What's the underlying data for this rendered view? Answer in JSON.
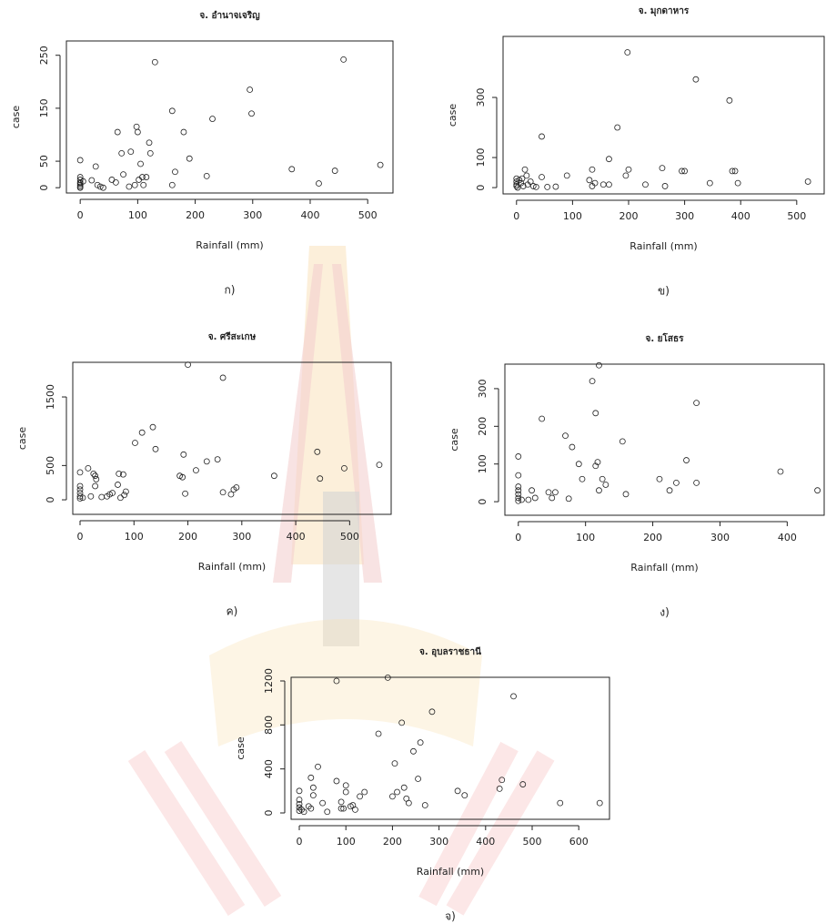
{
  "chart_data": [
    {
      "type": "scatter",
      "title": "จ. อำนาจเจริญ",
      "xlabel": "Rainfall (mm)",
      "ylabel": "case",
      "caption": "ก)",
      "x": [
        0,
        0,
        0,
        0,
        0,
        0,
        0,
        0,
        5,
        20,
        27,
        30,
        35,
        40,
        55,
        62,
        65,
        72,
        75,
        85,
        88,
        95,
        98,
        100,
        102,
        105,
        108,
        110,
        115,
        120,
        122,
        130,
        160,
        160,
        165,
        180,
        190,
        220,
        230,
        295,
        298,
        368,
        415,
        443,
        458,
        522
      ],
      "y": [
        52,
        20,
        15,
        10,
        5,
        2,
        0,
        8,
        12,
        14,
        40,
        5,
        2,
        0,
        15,
        10,
        105,
        65,
        25,
        2,
        68,
        5,
        115,
        105,
        15,
        45,
        20,
        5,
        20,
        85,
        65,
        237,
        145,
        5,
        30,
        105,
        55,
        22,
        130,
        185,
        140,
        35,
        8,
        32,
        242,
        43
      ],
      "xlim": [
        -24,
        544
      ],
      "ylim": [
        -10,
        277
      ],
      "xticks": [
        0,
        100,
        200,
        300,
        400,
        500
      ],
      "yticks": [
        0,
        50,
        150,
        250
      ]
    },
    {
      "type": "scatter",
      "title": "จ. มุกดาหาร",
      "xlabel": "Rainfall (mm)",
      "ylabel": "case",
      "caption": "ข)",
      "x": [
        0,
        0,
        0,
        0,
        2,
        5,
        8,
        10,
        12,
        15,
        18,
        20,
        25,
        30,
        35,
        45,
        45,
        55,
        70,
        90,
        130,
        135,
        135,
        140,
        155,
        165,
        165,
        180,
        195,
        198,
        200,
        230,
        260,
        265,
        295,
        300,
        320,
        345,
        380,
        385,
        390,
        395,
        520
      ],
      "y": [
        30,
        20,
        10,
        5,
        0,
        25,
        15,
        30,
        5,
        60,
        40,
        10,
        20,
        5,
        2,
        170,
        35,
        2,
        3,
        40,
        25,
        60,
        5,
        15,
        10,
        95,
        10,
        200,
        40,
        450,
        60,
        10,
        65,
        5,
        55,
        55,
        360,
        15,
        290,
        55,
        55,
        15,
        20
      ],
      "xlim": [
        -24,
        549
      ],
      "ylim": [
        -21,
        503
      ],
      "xticks": [
        0,
        100,
        200,
        300,
        400,
        500
      ],
      "yticks": [
        0,
        100,
        300
      ]
    },
    {
      "type": "scatter",
      "title": "จ. ศรีสะเกษ",
      "xlabel": "Rainfall (mm)",
      "ylabel": "case",
      "caption": "ค)",
      "x": [
        0,
        0,
        0,
        0,
        0,
        0,
        5,
        15,
        20,
        25,
        28,
        28,
        30,
        40,
        50,
        55,
        60,
        70,
        72,
        75,
        80,
        82,
        85,
        102,
        115,
        135,
        140,
        185,
        190,
        192,
        195,
        200,
        215,
        235,
        255,
        265,
        265,
        280,
        285,
        290,
        360,
        440,
        445,
        490,
        555
      ],
      "y": [
        400,
        200,
        150,
        100,
        50,
        20,
        30,
        460,
        50,
        380,
        350,
        200,
        300,
        40,
        50,
        80,
        100,
        220,
        380,
        30,
        370,
        70,
        120,
        830,
        980,
        1060,
        740,
        350,
        330,
        660,
        90,
        1970,
        430,
        560,
        590,
        1780,
        110,
        80,
        150,
        180,
        350,
        700,
        310,
        460,
        510
      ],
      "xlim": [
        -13.5,
        577
      ],
      "ylim": [
        -212,
        2005
      ],
      "xticks": [
        0,
        100,
        200,
        300,
        400,
        500
      ],
      "yticks": [
        0,
        500,
        1500
      ]
    },
    {
      "type": "scatter",
      "title": "จ. ยโสธร",
      "xlabel": "Rainfall (mm)",
      "ylabel": "case",
      "caption": "ง)",
      "x": [
        0,
        0,
        0,
        0,
        0,
        0,
        0,
        5,
        15,
        20,
        25,
        35,
        45,
        55,
        50,
        70,
        75,
        80,
        90,
        95,
        110,
        115,
        118,
        115,
        125,
        130,
        120,
        120,
        155,
        160,
        210,
        225,
        235,
        250,
        265,
        265,
        390,
        445
      ],
      "y": [
        120,
        70,
        40,
        30,
        20,
        10,
        2,
        5,
        5,
        30,
        10,
        220,
        25,
        25,
        10,
        175,
        8,
        145,
        100,
        60,
        320,
        235,
        105,
        95,
        60,
        45,
        30,
        362,
        160,
        20,
        60,
        30,
        50,
        110,
        262,
        50,
        80,
        30
      ],
      "xlim": [
        -20,
        455
      ],
      "ylim": [
        -36,
        365
      ],
      "xticks": [
        0,
        100,
        200,
        300,
        400
      ],
      "yticks": [
        0,
        100,
        200,
        300
      ]
    },
    {
      "type": "scatter",
      "title": "จ. อุบลราชธานี",
      "xlabel": "Rainfall (mm)",
      "ylabel": "case",
      "caption": "จ)",
      "x": [
        0,
        0,
        0,
        0,
        0,
        5,
        10,
        20,
        25,
        25,
        30,
        30,
        40,
        50,
        60,
        80,
        80,
        90,
        90,
        95,
        100,
        100,
        110,
        115,
        120,
        130,
        140,
        170,
        190,
        200,
        205,
        210,
        220,
        225,
        230,
        235,
        245,
        255,
        260,
        270,
        285,
        340,
        355,
        430,
        435,
        460,
        480,
        560,
        645
      ],
      "y": [
        200,
        120,
        80,
        50,
        20,
        30,
        10,
        60,
        40,
        320,
        160,
        230,
        420,
        90,
        10,
        290,
        1200,
        40,
        100,
        40,
        190,
        250,
        60,
        70,
        30,
        150,
        190,
        720,
        1230,
        150,
        450,
        190,
        820,
        230,
        130,
        90,
        560,
        310,
        640,
        70,
        920,
        200,
        160,
        220,
        300,
        1060,
        260,
        90,
        90
      ],
      "xlim": [
        -17.6,
        666
      ],
      "ylim": [
        -58,
        1233
      ],
      "xticks": [
        0,
        100,
        200,
        300,
        400,
        500,
        600
      ],
      "yticks": [
        0,
        400,
        800,
        1200
      ]
    }
  ]
}
